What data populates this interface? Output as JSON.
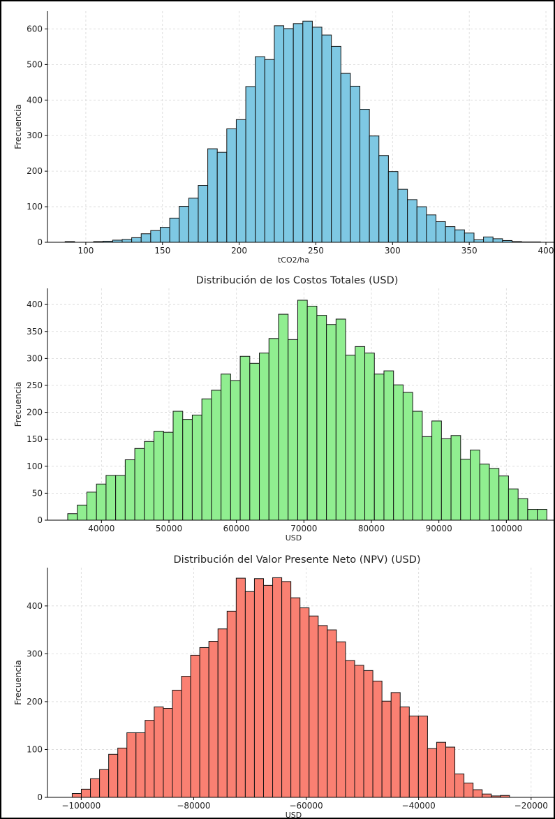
{
  "chart_data": [
    {
      "type": "bar",
      "title": "",
      "xlabel": "tCO2/ha",
      "ylabel": "Frecuencia",
      "color": "#7ec8e3",
      "xlim": [
        75,
        405
      ],
      "ylim": [
        0,
        650
      ],
      "xticks": [
        100,
        150,
        200,
        250,
        300,
        350,
        400
      ],
      "yticks": [
        0,
        100,
        200,
        300,
        400,
        500,
        600
      ],
      "grid": true,
      "bin_start": 86.5,
      "bin_width": 6.2,
      "values": [
        2,
        0,
        0,
        2,
        3,
        6,
        8,
        13,
        24,
        33,
        42,
        68,
        101,
        124,
        160,
        263,
        253,
        319,
        345,
        438,
        522,
        514,
        609,
        601,
        615,
        622,
        605,
        583,
        551,
        475,
        439,
        374,
        299,
        244,
        199,
        149,
        120,
        100,
        77,
        58,
        44,
        35,
        26,
        7,
        15,
        10,
        5,
        2,
        1,
        1
      ]
    },
    {
      "type": "bar",
      "title": "Distribución de los Costos Totales (USD)",
      "xlabel": "USD",
      "ylabel": "Frecuencia",
      "color": "#90ee90",
      "xlim": [
        32000,
        107000
      ],
      "ylim": [
        0,
        430
      ],
      "xticks": [
        40000,
        50000,
        60000,
        70000,
        80000,
        90000,
        100000
      ],
      "yticks": [
        0,
        50,
        100,
        150,
        200,
        250,
        300,
        350,
        400
      ],
      "grid": true,
      "bin_start": 35000,
      "bin_width": 1420,
      "values": [
        12,
        28,
        52,
        67,
        83,
        83,
        112,
        133,
        146,
        165,
        163,
        202,
        187,
        195,
        225,
        241,
        271,
        259,
        304,
        291,
        310,
        337,
        382,
        335,
        408,
        397,
        380,
        363,
        373,
        306,
        322,
        310,
        271,
        277,
        251,
        237,
        202,
        155,
        184,
        151,
        157,
        113,
        130,
        104,
        96,
        82,
        58,
        40,
        20,
        20
      ]
    },
    {
      "type": "bar",
      "title": "Distribución del Valor Presente Neto (NPV) (USD)",
      "xlabel": "USD",
      "ylabel": "Frecuencia",
      "color": "#fa8072",
      "xlim": [
        -106000,
        -16000
      ],
      "ylim": [
        0,
        480
      ],
      "xticks": [
        -100000,
        -80000,
        -60000,
        -40000,
        -20000
      ],
      "yticks": [
        0,
        100,
        200,
        300,
        400
      ],
      "grid": true,
      "bin_start": -101600,
      "bin_width": 1620,
      "values": [
        8,
        17,
        39,
        58,
        90,
        103,
        135,
        135,
        161,
        189,
        186,
        224,
        253,
        297,
        313,
        326,
        352,
        389,
        458,
        430,
        457,
        443,
        459,
        451,
        417,
        396,
        379,
        359,
        350,
        325,
        286,
        276,
        265,
        243,
        201,
        219,
        189,
        170,
        170,
        102,
        115,
        105,
        49,
        30,
        16,
        7,
        3,
        4,
        0,
        0,
        0,
        0,
        0,
        0,
        0,
        0,
        0,
        0,
        0,
        0,
        1
      ]
    }
  ]
}
